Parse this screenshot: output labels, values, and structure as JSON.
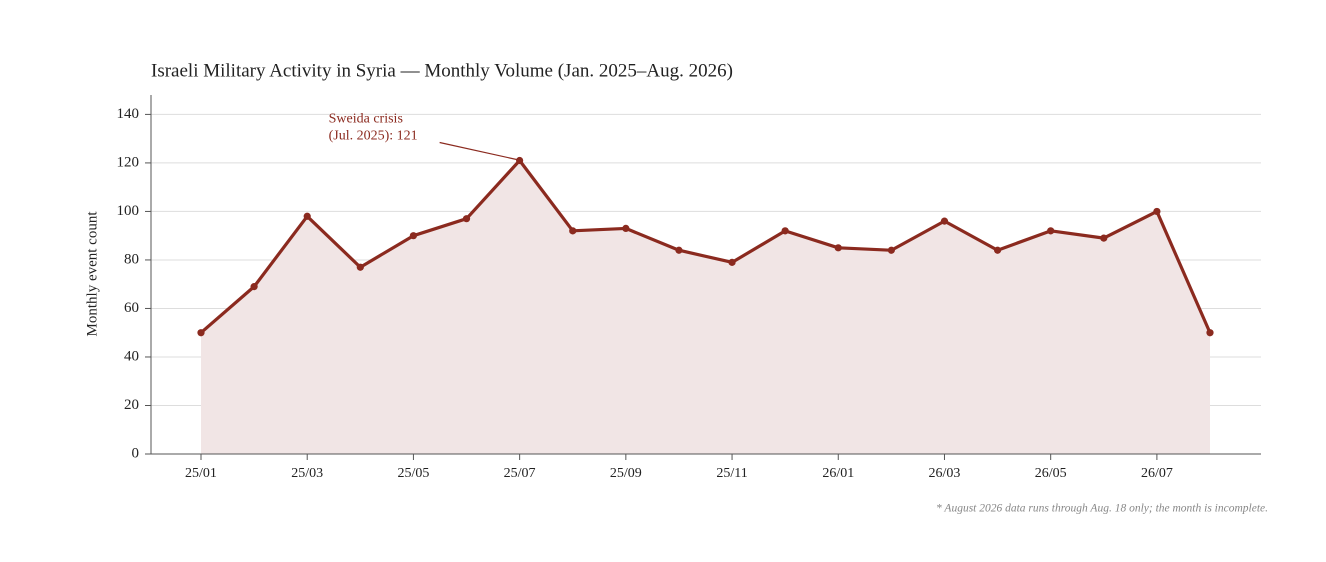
{
  "chart_data": {
    "type": "line",
    "title": "Israeli Military Activity in Syria — Monthly Volume (Jan. 2025–Aug. 2026)",
    "y_label": "Monthly event count",
    "categories": [
      "25/01",
      null,
      "25/03",
      null,
      "25/05",
      null,
      "25/07",
      null,
      "25/09",
      null,
      "25/11",
      null,
      "26/01",
      null,
      "26/03",
      null,
      "26/05",
      null,
      "26/07",
      null
    ],
    "values": [
      50,
      69,
      98,
      77,
      90,
      97,
      121,
      92,
      93,
      84,
      79,
      92,
      85,
      84,
      96,
      84,
      92,
      89,
      100,
      50
    ],
    "color": "#8b2a1f",
    "fill_color": "#f1e5e5",
    "ylim": [
      0,
      148
    ],
    "yticks": [
      0,
      20,
      40,
      60,
      80,
      100,
      120,
      140
    ],
    "grid": true,
    "annotation": [
      "Sweida crisis",
      "(Jul. 2025): 121"
    ],
    "footnote": "* August 2026 data runs through Aug. 18 only; the month is incomplete."
  }
}
